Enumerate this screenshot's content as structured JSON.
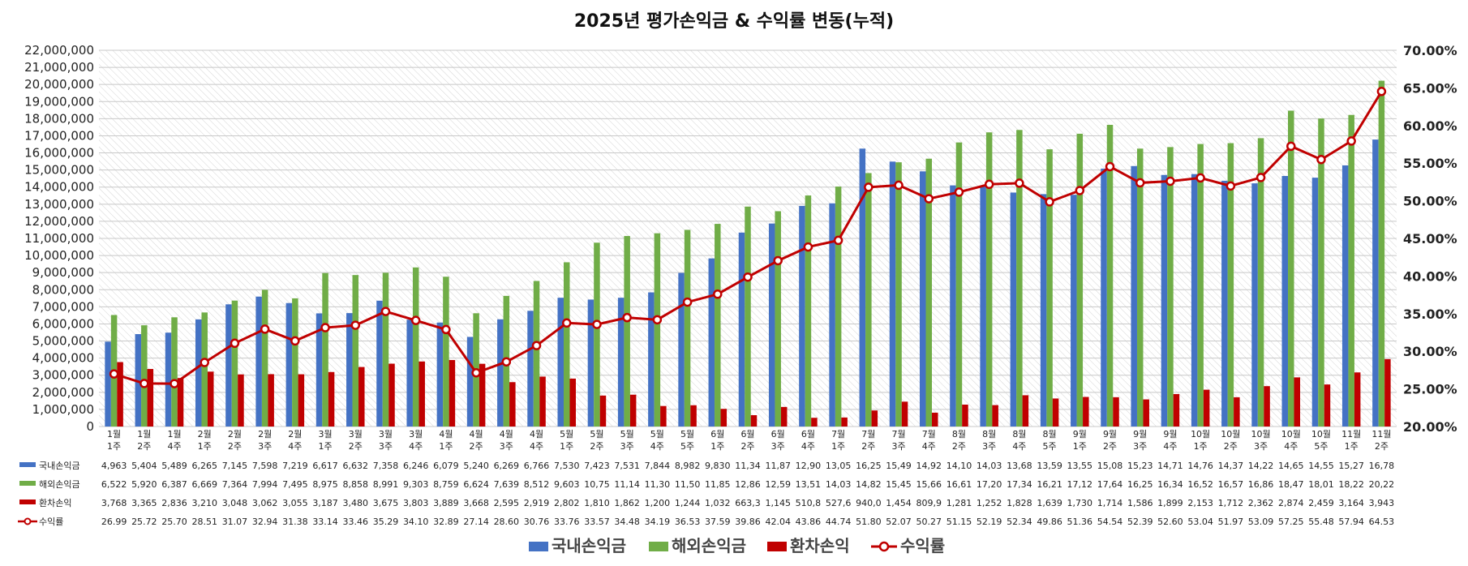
{
  "chart_data": {
    "type": "bar",
    "title": "2025년 평가손익금 & 수익률 변동(누적)",
    "categories": [
      [
        "1월",
        "1주"
      ],
      [
        "1월",
        "2주"
      ],
      [
        "1월",
        "4주"
      ],
      [
        "2월",
        "1주"
      ],
      [
        "2월",
        "2주"
      ],
      [
        "2월",
        "3주"
      ],
      [
        "2월",
        "4주"
      ],
      [
        "3월",
        "1주"
      ],
      [
        "3월",
        "2주"
      ],
      [
        "3월",
        "3주"
      ],
      [
        "3월",
        "4주"
      ],
      [
        "4월",
        "1주"
      ],
      [
        "4월",
        "2주"
      ],
      [
        "4월",
        "3주"
      ],
      [
        "4월",
        "4주"
      ],
      [
        "5월",
        "1주"
      ],
      [
        "5월",
        "2주"
      ],
      [
        "5월",
        "3주"
      ],
      [
        "5월",
        "4주"
      ],
      [
        "5월",
        "5주"
      ],
      [
        "6월",
        "1주"
      ],
      [
        "6월",
        "2주"
      ],
      [
        "6월",
        "3주"
      ],
      [
        "6월",
        "4주"
      ],
      [
        "7월",
        "1주"
      ],
      [
        "7월",
        "2주"
      ],
      [
        "7월",
        "3주"
      ],
      [
        "7월",
        "4주"
      ],
      [
        "8월",
        "2주"
      ],
      [
        "8월",
        "3주"
      ],
      [
        "8월",
        "4주"
      ],
      [
        "8월",
        "5주"
      ],
      [
        "9월",
        "1주"
      ],
      [
        "9월",
        "2주"
      ],
      [
        "9월",
        "3주"
      ],
      [
        "9월",
        "4주"
      ],
      [
        "10월",
        "1주"
      ],
      [
        "10월",
        "2주"
      ],
      [
        "10월",
        "3주"
      ],
      [
        "10월",
        "4주"
      ],
      [
        "10월",
        "5주"
      ],
      [
        "11월",
        "1주"
      ],
      [
        "11월",
        "2주"
      ]
    ],
    "y_left": {
      "ylim": [
        0,
        22000000
      ],
      "ticks": [
        "0",
        "1,000,000",
        "2,000,000",
        "3,000,000",
        "4,000,000",
        "5,000,000",
        "6,000,000",
        "7,000,000",
        "8,000,000",
        "9,000,000",
        "10,000,000",
        "11,000,000",
        "12,000,000",
        "13,000,000",
        "14,000,000",
        "15,000,000",
        "16,000,000",
        "17,000,000",
        "18,000,000",
        "19,000,000",
        "20,000,000",
        "21,000,000",
        "22,000,000"
      ]
    },
    "y_right": {
      "ylim": [
        20,
        70
      ],
      "ticks": [
        "20.00%",
        "25.00%",
        "30.00%",
        "35.00%",
        "40.00%",
        "45.00%",
        "50.00%",
        "55.00%",
        "60.00%",
        "65.00%",
        "70.00%"
      ]
    },
    "series": [
      {
        "name": "국내손익금",
        "kind": "bar",
        "color": "#4472C4",
        "values": [
          4963000,
          5404000,
          5489000,
          6265000,
          7145000,
          7598000,
          7219000,
          6617000,
          6632000,
          7358000,
          6246000,
          6079000,
          5240000,
          6269000,
          6766000,
          7530000,
          7423000,
          7531000,
          7844000,
          8982000,
          9830000,
          11340000,
          11870000,
          12900000,
          13050000,
          16250000,
          15490000,
          14920000,
          14100000,
          14030000,
          13680000,
          13590000,
          13550000,
          15080000,
          15230000,
          14710000,
          14760000,
          14370000,
          14220000,
          14650000,
          14550000,
          15270000,
          16780000
        ],
        "labels": [
          "4,963",
          "5,404",
          "5,489",
          "6,265",
          "7,145",
          "7,598",
          "7,219",
          "6,617",
          "6,632",
          "7,358",
          "6,246",
          "6,079",
          "5,240",
          "6,269",
          "6,766",
          "7,530",
          "7,423",
          "7,531",
          "7,844",
          "8,982",
          "9,830",
          "11,34",
          "11,87",
          "12,90",
          "13,05",
          "16,25",
          "15,49",
          "14,92",
          "14,10",
          "14,03",
          "13,68",
          "13,59",
          "13,55",
          "15,08",
          "15,23",
          "14,71",
          "14,76",
          "14,37",
          "14,22",
          "14,65",
          "14,55",
          "15,27",
          "16,78"
        ]
      },
      {
        "name": "해외손익금",
        "kind": "bar",
        "color": "#70AD47",
        "values": [
          6522000,
          5920000,
          6387000,
          6669000,
          7364000,
          7994000,
          7495000,
          8975000,
          8858000,
          8991000,
          9303000,
          8759000,
          6624000,
          7639000,
          8512000,
          9603000,
          10750000,
          11140000,
          11300000,
          11500000,
          11850000,
          12860000,
          12590000,
          13510000,
          14030000,
          14820000,
          15450000,
          15660000,
          16610000,
          17200000,
          17340000,
          16210000,
          17120000,
          17640000,
          16250000,
          16340000,
          16520000,
          16570000,
          16860000,
          18470000,
          18010000,
          18220000,
          20220000
        ],
        "labels": [
          "6,522",
          "5,920",
          "6,387",
          "6,669",
          "7,364",
          "7,994",
          "7,495",
          "8,975",
          "8,858",
          "8,991",
          "9,303",
          "8,759",
          "6,624",
          "7,639",
          "8,512",
          "9,603",
          "10,75",
          "11,14",
          "11,30",
          "11,50",
          "11,85",
          "12,86",
          "12,59",
          "13,51",
          "14,03",
          "14,82",
          "15,45",
          "15,66",
          "16,61",
          "17,20",
          "17,34",
          "16,21",
          "17,12",
          "17,64",
          "16,25",
          "16,34",
          "16,52",
          "16,57",
          "16,86",
          "18,47",
          "18,01",
          "18,22",
          "20,22"
        ]
      },
      {
        "name": "환차손익",
        "kind": "bar",
        "color": "#C00000",
        "values": [
          3768000,
          3365000,
          2836000,
          3210000,
          3048000,
          3062000,
          3055000,
          3187000,
          3480000,
          3675000,
          3803000,
          3889000,
          3668000,
          2595000,
          2919000,
          2802000,
          1810000,
          1862000,
          1200000,
          1244000,
          1032000,
          663300,
          1145000,
          510800,
          527600,
          940000,
          1454000,
          809900,
          1281000,
          1252000,
          1828000,
          1639000,
          1730000,
          1714000,
          1586000,
          1899000,
          2153000,
          1712000,
          2362000,
          2874000,
          2459000,
          3164000,
          3943000
        ],
        "labels": [
          "3,768",
          "3,365",
          "2,836",
          "3,210",
          "3,048",
          "3,062",
          "3,055",
          "3,187",
          "3,480",
          "3,675",
          "3,803",
          "3,889",
          "3,668",
          "2,595",
          "2,919",
          "2,802",
          "1,810",
          "1,862",
          "1,200",
          "1,244",
          "1,032",
          "663,3",
          "1,145",
          "510,8",
          "527,6",
          "940,0",
          "1,454",
          "809,9",
          "1,281",
          "1,252",
          "1,828",
          "1,639",
          "1,730",
          "1,714",
          "1,586",
          "1,899",
          "2,153",
          "1,712",
          "2,362",
          "2,874",
          "2,459",
          "3,164",
          "3,943"
        ]
      },
      {
        "name": "수익률",
        "kind": "line",
        "axis": "right",
        "color": "#C00000",
        "values": [
          26.99,
          25.72,
          25.7,
          28.51,
          31.07,
          32.94,
          31.38,
          33.14,
          33.46,
          35.29,
          34.1,
          32.89,
          27.14,
          28.6,
          30.76,
          33.76,
          33.57,
          34.48,
          34.19,
          36.53,
          37.59,
          39.86,
          42.04,
          43.86,
          44.74,
          51.8,
          52.07,
          50.27,
          51.15,
          52.19,
          52.34,
          49.86,
          51.36,
          54.54,
          52.39,
          52.6,
          53.04,
          51.97,
          53.09,
          57.25,
          55.48,
          57.94,
          64.53
        ],
        "labels": [
          "26.99",
          "25.72",
          "25.70",
          "28.51",
          "31.07",
          "32.94",
          "31.38",
          "33.14",
          "33.46",
          "35.29",
          "34.10",
          "32.89",
          "27.14",
          "28.60",
          "30.76",
          "33.76",
          "33.57",
          "34.48",
          "34.19",
          "36.53",
          "37.59",
          "39.86",
          "42.04",
          "43.86",
          "44.74",
          "51.80",
          "52.07",
          "50.27",
          "51.15",
          "52.19",
          "52.34",
          "49.86",
          "51.36",
          "54.54",
          "52.39",
          "52.60",
          "53.04",
          "51.97",
          "53.09",
          "57.25",
          "55.48",
          "57.94",
          "64.53"
        ]
      }
    ],
    "legend_position": "bottom",
    "grid": true,
    "data_table": true
  }
}
